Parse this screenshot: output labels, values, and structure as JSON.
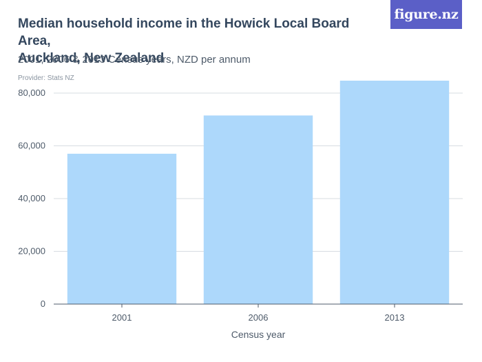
{
  "header": {
    "title_line1": "Median household income in the Howick Local Board Area,",
    "title_line2": "Auckland, New Zealand",
    "subtitle": "2001, 2006 & 2013 Census years, NZD per annum",
    "provider": "Provider: Stats NZ",
    "logo": "figure.nz",
    "logo_color": "#5b5fc7"
  },
  "chart_data": {
    "type": "bar",
    "title": "Median household income in the Howick Local Board Area, Auckland, New Zealand",
    "subtitle": "2001, 2006 & 2013 Census years, NZD per annum",
    "categories": [
      "2001",
      "2006",
      "2013"
    ],
    "values": [
      57000,
      71500,
      84700
    ],
    "xlabel": "Census year",
    "ylabel": "",
    "ylim": [
      0,
      86000
    ],
    "yticks": [
      0,
      20000,
      40000,
      60000,
      80000
    ],
    "ytick_labels": [
      "0",
      "20,000",
      "40,000",
      "60,000",
      "80,000"
    ],
    "grid": true,
    "bar_color": "#add8fb",
    "legend": "none"
  }
}
